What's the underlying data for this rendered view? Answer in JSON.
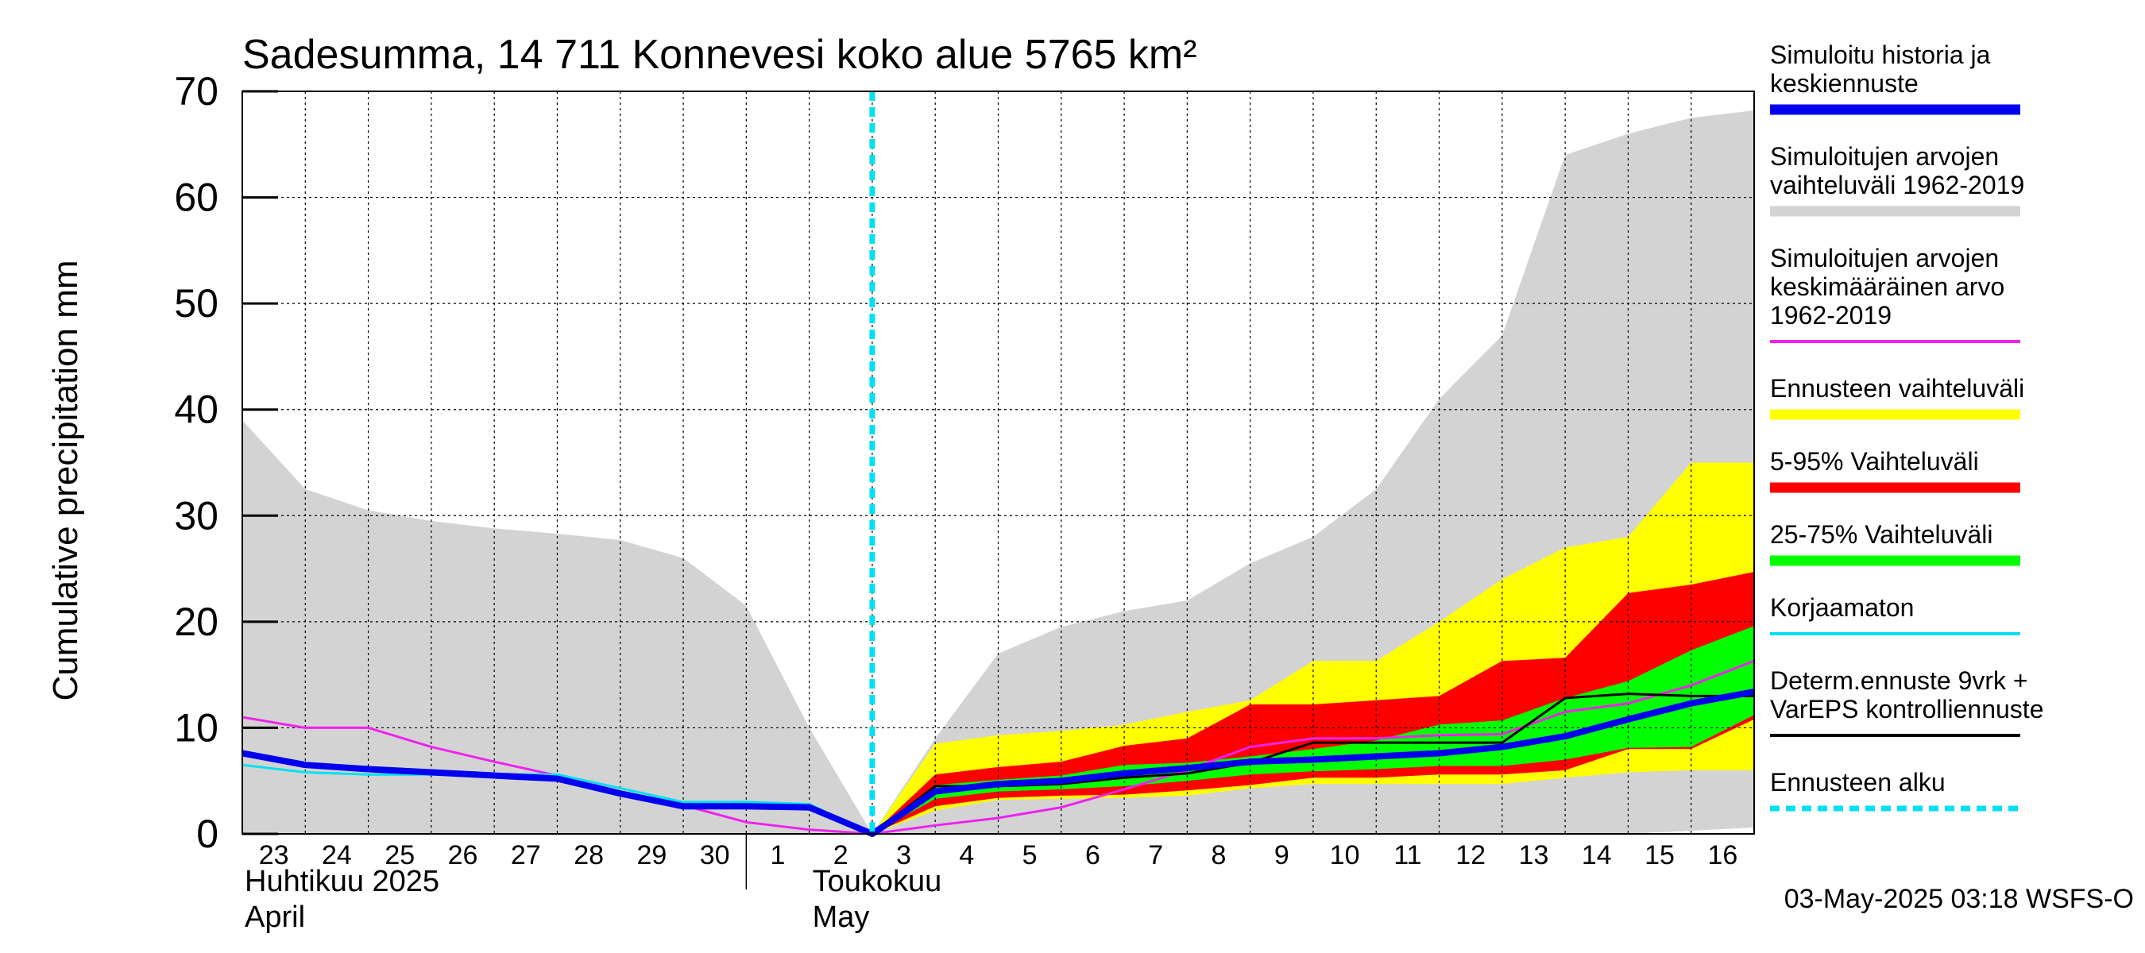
{
  "chart_data": {
    "type": "area",
    "title": "Sadesumma, 14 711 Konnevesi koko alue 5765 km²",
    "ylabel": "Cumulative precipitation   mm",
    "ylim": [
      0,
      70
    ],
    "yticks": [
      0,
      10,
      20,
      30,
      40,
      50,
      60,
      70
    ],
    "x_dates": [
      "2025-04-23",
      "2025-04-24",
      "2025-04-25",
      "2025-04-26",
      "2025-04-27",
      "2025-04-28",
      "2025-04-29",
      "2025-04-30",
      "2025-05-01",
      "2025-05-02",
      "2025-05-03",
      "2025-05-04",
      "2025-05-05",
      "2025-05-06",
      "2025-05-07",
      "2025-05-08",
      "2025-05-09",
      "2025-05-10",
      "2025-05-11",
      "2025-05-12",
      "2025-05-13",
      "2025-05-14",
      "2025-05-15",
      "2025-05-16",
      "2025-05-17"
    ],
    "day_labels": [
      "23",
      "24",
      "25",
      "26",
      "27",
      "28",
      "29",
      "30",
      "1",
      "2",
      "3",
      "4",
      "5",
      "6",
      "7",
      "8",
      "9",
      "10",
      "11",
      "12",
      "13",
      "14",
      "15",
      "16"
    ],
    "month_labels": [
      {
        "line1": "Huhtikuu  2025",
        "line2": "April"
      },
      {
        "line1": "Toukokuu",
        "line2": "May"
      }
    ],
    "grid": true,
    "legend_position": "right",
    "forecast_start": "2025-05-03",
    "series": [
      {
        "name": "Simuloitujen arvojen vaihteluväli 1962-2019",
        "kind": "band",
        "color": "#d3d3d3",
        "upper": [
          39,
          32.5,
          30.5,
          29.5,
          28.8,
          28.3,
          27.7,
          26,
          21.5,
          10,
          0,
          9,
          17,
          19.5,
          21,
          22,
          25.5,
          28,
          32.5,
          41,
          47,
          64,
          66,
          67.5,
          68.2
        ],
        "lower": [
          0,
          0,
          0,
          0,
          0,
          0,
          0,
          0,
          0,
          0,
          0,
          0,
          0,
          0,
          0,
          0,
          0,
          0,
          0,
          0,
          0,
          0,
          0,
          0.3,
          0.6
        ]
      },
      {
        "name": "Ennusteen vaihteluväli",
        "kind": "band",
        "color": "#ffff00",
        "dates_from": 10,
        "upper": [
          0,
          8.5,
          9.3,
          9.7,
          10.3,
          11.5,
          12.6,
          16.3,
          16.3,
          20,
          24,
          27,
          28,
          35,
          35
        ],
        "lower": [
          0,
          2.2,
          3.2,
          3.3,
          3.4,
          3.6,
          4.3,
          4.7,
          4.7,
          4.7,
          4.7,
          5.3,
          5.8,
          6,
          6
        ]
      },
      {
        "name": "5-95% Vaihteluväli",
        "kind": "band",
        "color": "#ff0000",
        "dates_from": 10,
        "upper": [
          0,
          5.6,
          6.3,
          6.8,
          8.3,
          9,
          12.2,
          12.2,
          12.6,
          13,
          16.3,
          16.6,
          22.7,
          23.5,
          24.7
        ],
        "lower": [
          0,
          2.6,
          3.4,
          3.6,
          3.7,
          4.1,
          4.6,
          5.3,
          5.3,
          5.6,
          5.6,
          6,
          8,
          8,
          10.8
        ]
      },
      {
        "name": "25-75% Vaihteluväli",
        "kind": "band",
        "color": "#00ff00",
        "dates_from": 10,
        "upper": [
          0,
          4.6,
          5.1,
          5.5,
          6.5,
          6.7,
          7.3,
          8,
          8.8,
          10.3,
          10.7,
          12.8,
          14.4,
          17.3,
          19.6
        ],
        "lower": [
          0,
          3.3,
          4,
          4.2,
          4.5,
          5,
          5.6,
          5.9,
          6.1,
          6.4,
          6.4,
          7,
          8.1,
          8.2,
          11.2
        ]
      },
      {
        "name": "Simuloitujen arvojen keskimääräinen arvo 1962-2019",
        "kind": "line",
        "color": "#ee22ee",
        "width": 3,
        "values": [
          11,
          10,
          10,
          8.2,
          6.8,
          5.5,
          4,
          2.7,
          1.1,
          0.4,
          0,
          0.8,
          1.5,
          2.5,
          4.2,
          6,
          8.2,
          9,
          9,
          9.3,
          9.4,
          11.5,
          12.3,
          14,
          16.3
        ]
      },
      {
        "name": "Korjaamaton",
        "kind": "line",
        "color": "#00e0f0",
        "width": 3,
        "values": [
          6.5,
          5.8,
          5.6,
          5.6,
          5.6,
          5.6,
          4.3,
          3,
          3,
          2.8,
          0,
          null,
          null,
          null,
          null,
          null,
          null,
          null,
          null,
          null,
          null,
          null,
          null,
          null,
          null
        ]
      },
      {
        "name": "Determ.ennuste 9vrk + VarEPS kontrolliennuste",
        "kind": "line",
        "color": "#000000",
        "width": 3,
        "dates_from": 10,
        "values": [
          0,
          4.5,
          4.5,
          4.7,
          5.3,
          5.7,
          6.7,
          8.6,
          8.6,
          8.6,
          8.6,
          12.8,
          13.2,
          13,
          13
        ]
      },
      {
        "name": "Simuloitu historia ja keskiennuste",
        "kind": "line",
        "color": "#0000ee",
        "width": 8,
        "values": [
          7.6,
          6.5,
          6.1,
          5.8,
          5.5,
          5.2,
          3.8,
          2.6,
          2.6,
          2.5,
          0,
          4,
          4.7,
          5,
          5.7,
          6.2,
          6.8,
          7,
          7.3,
          7.6,
          8.2,
          9.2,
          10.8,
          12.3,
          13.4
        ]
      }
    ],
    "legend": [
      {
        "label_lines": [
          "Simuloitu historia ja",
          "keskiennuste"
        ],
        "color": "#0000ee",
        "style": "thick"
      },
      {
        "label_lines": [
          "Simuloitujen arvojen",
          "vaihteluväli 1962-2019"
        ],
        "color": "#d3d3d3",
        "style": "thick"
      },
      {
        "label_lines": [
          "Simuloitujen arvojen",
          "keskimääräinen arvo",
          "   1962-2019"
        ],
        "color": "#ee22ee",
        "style": "thin"
      },
      {
        "label_lines": [
          "Ennusteen vaihteluväli"
        ],
        "color": "#ffff00",
        "style": "thick"
      },
      {
        "label_lines": [
          "5-95% Vaihteluväli"
        ],
        "color": "#ff0000",
        "style": "thick"
      },
      {
        "label_lines": [
          "25-75% Vaihteluväli"
        ],
        "color": "#00ff00",
        "style": "thick"
      },
      {
        "label_lines": [
          "Korjaamaton"
        ],
        "color": "#00e0f0",
        "style": "thin"
      },
      {
        "label_lines": [
          "Determ.ennuste 9vrk +",
          "VarEPS kontrolliennuste"
        ],
        "color": "#000000",
        "style": "thin"
      },
      {
        "label_lines": [
          "Ennusteen alku"
        ],
        "color": "#00e0f0",
        "style": "dashed"
      }
    ],
    "footer": "03-May-2025 03:18 WSFS-O"
  }
}
